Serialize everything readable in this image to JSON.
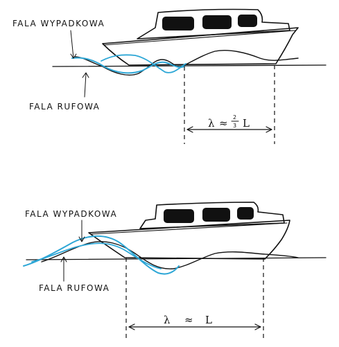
{
  "colors": {
    "ink": "#111111",
    "resultant_wave": "#2ea7d6",
    "window": "#111111"
  },
  "top": {
    "label_resultant": "FALA WYPADKOWA",
    "label_stern": "FALA RUFOWA",
    "lambda_symbol": "λ",
    "approx": "≈",
    "frac_num": "2",
    "frac_den": "3",
    "length_symbol": "L"
  },
  "bottom": {
    "label_resultant": "FALA WYPADKOWA",
    "label_stern": "FALA RUFOWA",
    "lambda_symbol": "λ",
    "approx": "≈",
    "length_symbol": "L"
  }
}
